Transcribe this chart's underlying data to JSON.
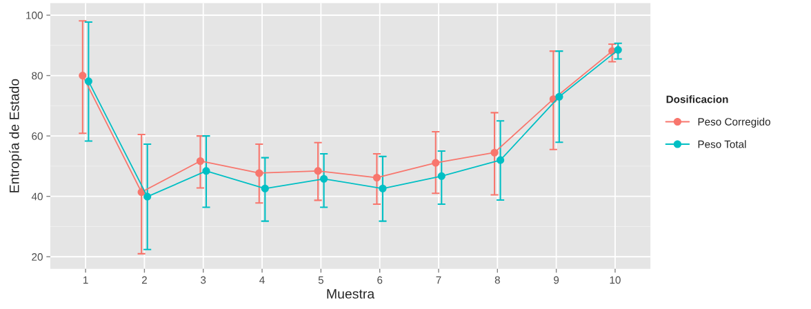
{
  "chart_data": {
    "type": "line",
    "xlabel": "Muestra",
    "ylabel": "Entropía de Estado",
    "legend_title": "Dosificacion",
    "categories": [
      "1",
      "2",
      "3",
      "4",
      "5",
      "6",
      "7",
      "8",
      "9",
      "10"
    ],
    "series": [
      {
        "name": "Peso Corregido",
        "color": "#f8766d",
        "values": [
          80,
          41.4,
          51.7,
          47.7,
          48.4,
          46.2,
          51.1,
          54.5,
          72.2,
          88.1
        ],
        "errors": [
          [
            60.9,
            98.1
          ],
          [
            21.0,
            60.5
          ],
          [
            42.8,
            60
          ],
          [
            37.8,
            57.3
          ],
          [
            38.7,
            57.8
          ],
          [
            37.4,
            54.1
          ],
          [
            41.0,
            61.4
          ],
          [
            40.5,
            67.7
          ],
          [
            55.5,
            88.1
          ],
          [
            84.6,
            90.4
          ]
        ]
      },
      {
        "name": "Peso Total",
        "color": "#00bfc4",
        "values": [
          78.1,
          39.9,
          48.4,
          42.6,
          45.8,
          42.6,
          46.7,
          52.0,
          73.0,
          88.5
        ],
        "errors": [
          [
            58.3,
            97.7
          ],
          [
            22.4,
            57.3
          ],
          [
            36.4,
            60
          ],
          [
            31.8,
            52.8
          ],
          [
            36.4,
            54.1
          ],
          [
            31.8,
            53.2
          ],
          [
            37.4,
            55.0
          ],
          [
            38.8,
            65.0
          ],
          [
            57.9,
            88.1
          ],
          [
            85.5,
            90.7
          ]
        ]
      }
    ],
    "ylim": [
      16,
      104
    ],
    "yticks": [
      20,
      40,
      60,
      80,
      100
    ],
    "grid": true,
    "legend": "right",
    "marker": "circle",
    "line_style": "solid"
  }
}
